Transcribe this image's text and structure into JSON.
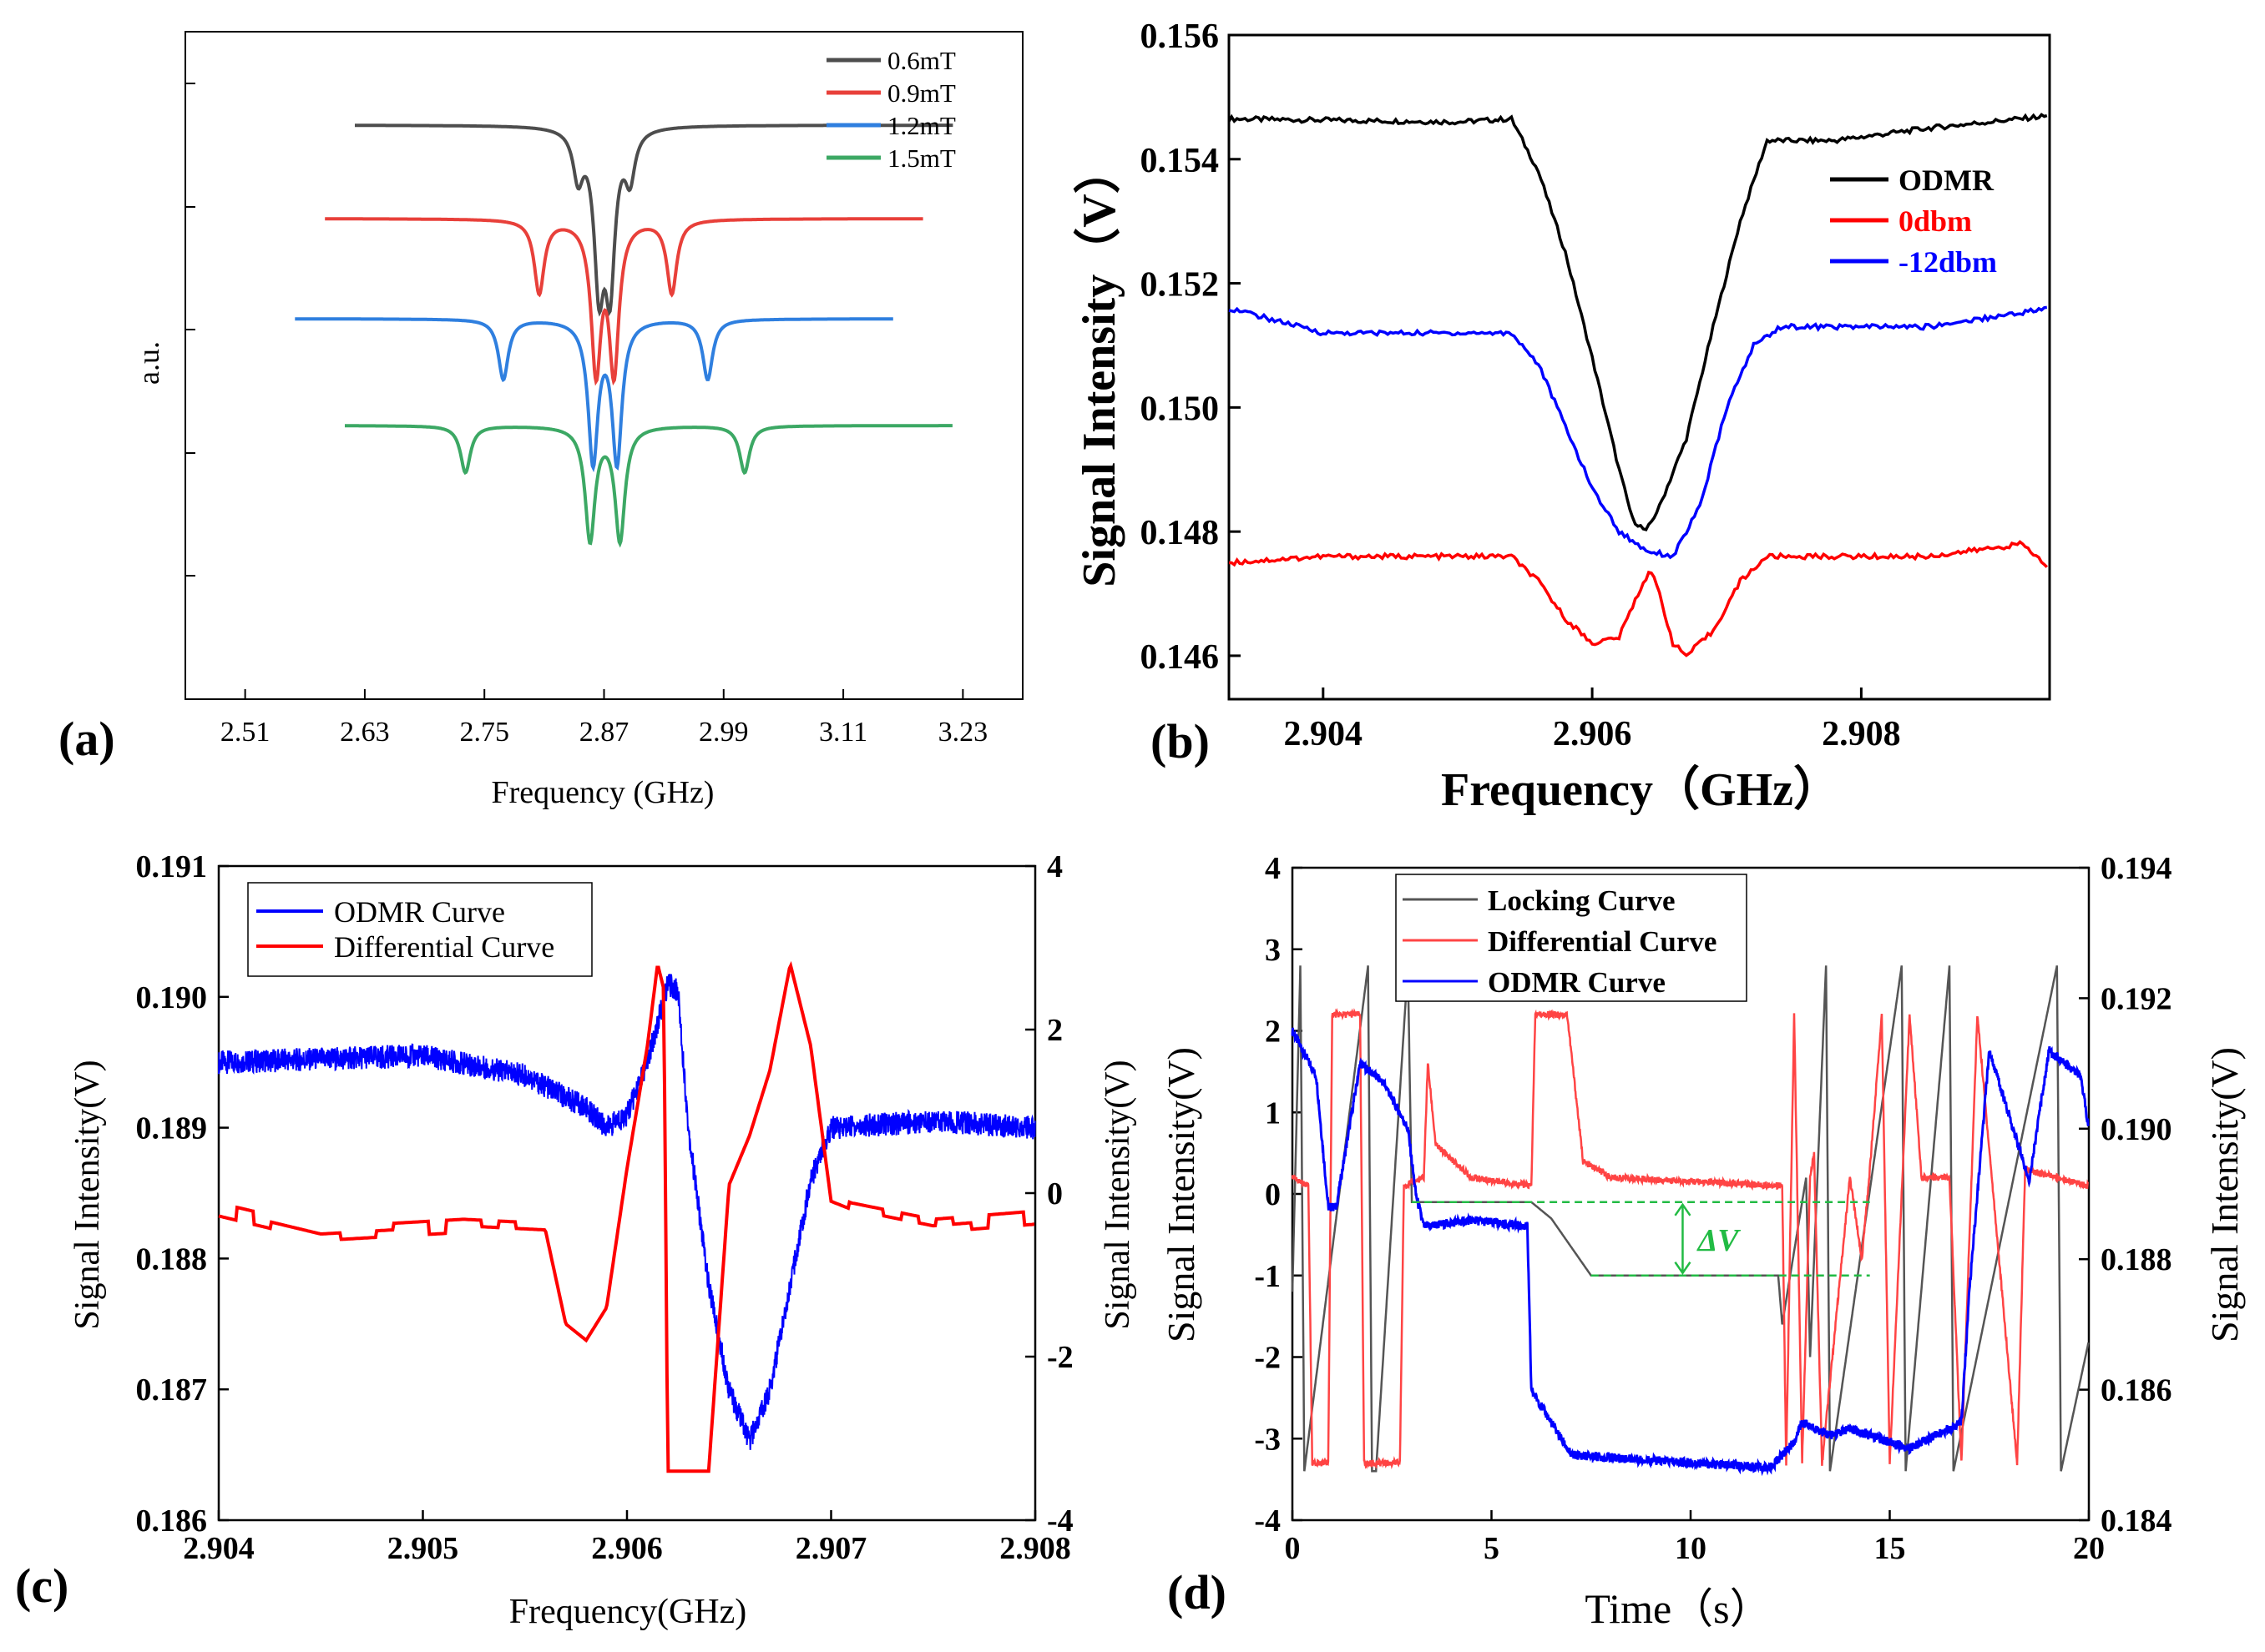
{
  "chart_data": [
    {
      "panel": "a",
      "panel_label": "(a)",
      "type": "line",
      "xlabel": "Frequency (GHz)",
      "ylabel": "a.u.",
      "xlim": [
        2.45,
        3.29
      ],
      "x_ticks": [
        "2.51",
        "2.63",
        "2.75",
        "2.87",
        "2.99",
        "3.11",
        "3.23"
      ],
      "legend_position": "top-right",
      "series": [
        {
          "name": "0.6mT",
          "color": "#4d4d4d",
          "x_range": [
            2.62,
            3.22
          ],
          "baseline": 0.86,
          "dips": [
            {
              "f": 2.844,
              "depth": 0.07,
              "w": 0.006
            },
            {
              "f": 2.865,
              "depth": 0.22,
              "w": 0.006
            },
            {
              "f": 2.876,
              "depth": 0.22,
              "w": 0.006
            },
            {
              "f": 2.896,
              "depth": 0.07,
              "w": 0.006
            }
          ]
        },
        {
          "name": "0.9mT",
          "color": "#e8403a",
          "x_range": [
            2.59,
            3.19
          ],
          "baseline": 0.72,
          "dips": [
            {
              "f": 2.805,
              "depth": 0.11,
              "w": 0.006
            },
            {
              "f": 2.862,
              "depth": 0.22,
              "w": 0.006
            },
            {
              "f": 2.88,
              "depth": 0.22,
              "w": 0.006
            },
            {
              "f": 2.938,
              "depth": 0.11,
              "w": 0.006
            }
          ]
        },
        {
          "name": "1.2mT",
          "color": "#2f7fdf",
          "x_range": [
            2.56,
            3.16
          ],
          "baseline": 0.57,
          "dips": [
            {
              "f": 2.769,
              "depth": 0.09,
              "w": 0.006
            },
            {
              "f": 2.859,
              "depth": 0.21,
              "w": 0.006
            },
            {
              "f": 2.883,
              "depth": 0.21,
              "w": 0.006
            },
            {
              "f": 2.974,
              "depth": 0.09,
              "w": 0.006
            }
          ]
        },
        {
          "name": "1.5mT",
          "color": "#3ca864",
          "x_range": [
            2.61,
            3.22
          ],
          "baseline": 0.41,
          "dips": [
            {
              "f": 2.731,
              "depth": 0.07,
              "w": 0.006
            },
            {
              "f": 2.856,
              "depth": 0.17,
              "w": 0.006
            },
            {
              "f": 2.886,
              "depth": 0.17,
              "w": 0.006
            },
            {
              "f": 3.011,
              "depth": 0.07,
              "w": 0.006
            }
          ]
        }
      ]
    },
    {
      "panel": "b",
      "panel_label": "(b)",
      "type": "line",
      "xlabel": "Frequency（GHz）",
      "ylabel": "Signal Intensity（V）",
      "xlim": [
        2.9033,
        2.9094
      ],
      "ylim": [
        0.1453,
        0.156
      ],
      "x_ticks": [
        "2.904",
        "2.906",
        "2.908"
      ],
      "y_ticks": [
        "0.146",
        "0.148",
        "0.150",
        "0.152",
        "0.154",
        "0.156"
      ],
      "legend_position": "top-right",
      "series": [
        {
          "name": "ODMR",
          "color": "#000000",
          "points": [
            [
              2.9033,
              0.15465
            ],
            [
              2.905,
              0.1546
            ],
            [
              2.9054,
              0.15465
            ],
            [
              2.9056,
              0.1538
            ],
            [
              2.9058,
              0.1525
            ],
            [
              2.906,
              0.1508
            ],
            [
              2.9062,
              0.149
            ],
            [
              2.9063,
              0.1482
            ],
            [
              2.9064,
              0.148
            ],
            [
              2.9065,
              0.1484
            ],
            [
              2.9067,
              0.1495
            ],
            [
              2.9069,
              0.1513
            ],
            [
              2.9071,
              0.153
            ],
            [
              2.9073,
              0.1543
            ],
            [
              2.9078,
              0.1543
            ],
            [
              2.9085,
              0.1545
            ],
            [
              2.9094,
              0.1547
            ]
          ]
        },
        {
          "name": "0dbm",
          "color": "#ff0000",
          "points": [
            [
              2.9033,
              0.1475
            ],
            [
              2.904,
              0.1476
            ],
            [
              2.9054,
              0.1476
            ],
            [
              2.9056,
              0.1472
            ],
            [
              2.9058,
              0.1466
            ],
            [
              2.906,
              0.1462
            ],
            [
              2.9062,
              0.1463
            ],
            [
              2.9063,
              0.1468
            ],
            [
              2.90643,
              0.1474
            ],
            [
              2.9065,
              0.147
            ],
            [
              2.9066,
              0.1462
            ],
            [
              2.9067,
              0.146
            ],
            [
              2.9069,
              0.1464
            ],
            [
              2.9071,
              0.1472
            ],
            [
              2.9073,
              0.1476
            ],
            [
              2.9085,
              0.1476
            ],
            [
              2.9092,
              0.1478
            ],
            [
              2.9094,
              0.1474
            ]
          ]
        },
        {
          "name": "-12dbm",
          "color": "#0000ff",
          "points": [
            [
              2.9033,
              0.1516
            ],
            [
              2.904,
              0.1512
            ],
            [
              2.9054,
              0.1512
            ],
            [
              2.9056,
              0.1507
            ],
            [
              2.9058,
              0.1497
            ],
            [
              2.906,
              0.1487
            ],
            [
              2.9062,
              0.148
            ],
            [
              2.9064,
              0.1477
            ],
            [
              2.9066,
              0.1476
            ],
            [
              2.9068,
              0.1484
            ],
            [
              2.907,
              0.15
            ],
            [
              2.9072,
              0.151
            ],
            [
              2.9074,
              0.1513
            ],
            [
              2.9085,
              0.1513
            ],
            [
              2.9094,
              0.1516
            ]
          ]
        }
      ]
    },
    {
      "panel": "c",
      "panel_label": "(c)",
      "type": "line",
      "xlabel": "Frequency(GHz)",
      "ylabel": "Signal Intensity(V)",
      "y2label": "Signal Intensity(V)",
      "xlim": [
        2.904,
        2.908
      ],
      "ylim": [
        0.186,
        0.191
      ],
      "y2lim": [
        -4,
        4
      ],
      "x_ticks": [
        "2.904",
        "2.905",
        "2.906",
        "2.907",
        "2.908"
      ],
      "y_ticks": [
        "0.186",
        "0.187",
        "0.188",
        "0.189",
        "0.190",
        "0.191"
      ],
      "y2_ticks": [
        "-4",
        "-2",
        "0",
        "2",
        "4"
      ],
      "legend_position": "top-left",
      "series": [
        {
          "name": "ODMR Curve",
          "color": "#0000ff",
          "axis": "left",
          "points": [
            [
              2.904,
              0.1895
            ],
            [
              2.905,
              0.18955
            ],
            [
              2.9055,
              0.1894
            ],
            [
              2.9058,
              0.18915
            ],
            [
              2.9059,
              0.189
            ],
            [
              2.906,
              0.1891
            ],
            [
              2.9061,
              0.1895
            ],
            [
              2.90615,
              0.1898
            ],
            [
              2.9062,
              0.1901
            ],
            [
              2.90625,
              0.19005
            ],
            [
              2.9063,
              0.189
            ],
            [
              2.9064,
              0.1878
            ],
            [
              2.9065,
              0.187
            ],
            [
              2.9066,
              0.1866
            ],
            [
              2.9067,
              0.187
            ],
            [
              2.9068,
              0.1878
            ],
            [
              2.9069,
              0.1886
            ],
            [
              2.907,
              0.189
            ],
            [
              2.9075,
              0.18905
            ],
            [
              2.908,
              0.189
            ]
          ]
        },
        {
          "name": "Differential Curve",
          "color": "#ff0000",
          "axis": "right",
          "points": [
            [
              2.904,
              -0.2
            ],
            [
              2.9045,
              -0.5
            ],
            [
              2.9052,
              -0.4
            ],
            [
              2.9056,
              -0.45
            ],
            [
              2.9057,
              -1.6
            ],
            [
              2.9058,
              -1.8
            ],
            [
              2.9059,
              -1.4
            ],
            [
              2.906,
              0.3
            ],
            [
              2.9061,
              1.8
            ],
            [
              2.90615,
              2.8
            ],
            [
              2.90618,
              2.5
            ],
            [
              2.9062,
              -3.4
            ],
            [
              2.9064,
              -3.4
            ],
            [
              2.9065,
              0.1
            ],
            [
              2.9066,
              0.7
            ],
            [
              2.9067,
              1.5
            ],
            [
              2.9068,
              2.8
            ],
            [
              2.9069,
              1.8
            ],
            [
              2.907,
              -0.1
            ],
            [
              2.9071,
              -0.2
            ],
            [
              2.9075,
              -0.4
            ],
            [
              2.908,
              -0.3
            ]
          ]
        }
      ]
    },
    {
      "panel": "d",
      "panel_label": "(d)",
      "type": "line",
      "xlabel": "Time（s）",
      "ylabel": "Signal Intensity(V)",
      "y2label": "Signal Intensity(V)",
      "xlim": [
        0,
        20
      ],
      "ylim": [
        -4,
        4
      ],
      "y2lim": [
        0.184,
        0.194
      ],
      "x_ticks": [
        "0",
        "5",
        "10",
        "15",
        "20"
      ],
      "y_ticks": [
        "-4",
        "-3",
        "-2",
        "-1",
        "0",
        "1",
        "2",
        "3",
        "4"
      ],
      "y2_ticks": [
        "0.184",
        "0.186",
        "0.188",
        "0.190",
        "0.192",
        "0.194"
      ],
      "legend_position": "top-center",
      "annotation": {
        "text": "ΔV",
        "x": 9.8,
        "y_top": -0.1,
        "y_bottom": -1.0,
        "color": "#22bb44"
      },
      "series": [
        {
          "name": "Locking Curve",
          "color": "#555555",
          "axis": "left",
          "points": [
            [
              0,
              -1.2
            ],
            [
              0.2,
              2.8
            ],
            [
              0.3,
              -3.4
            ],
            [
              1.9,
              2.8
            ],
            [
              2.0,
              -3.4
            ],
            [
              2.1,
              -3.4
            ],
            [
              2.9,
              2.8
            ],
            [
              3.0,
              -0.1
            ],
            [
              6.0,
              -0.1
            ],
            [
              6.5,
              -0.3
            ],
            [
              7.5,
              -1.0
            ],
            [
              12.2,
              -1.0
            ],
            [
              12.3,
              -1.6
            ],
            [
              12.9,
              0.2
            ],
            [
              13.0,
              -2.0
            ],
            [
              13.4,
              2.8
            ],
            [
              13.5,
              -3.4
            ],
            [
              15.3,
              2.8
            ],
            [
              15.4,
              -3.4
            ],
            [
              16.5,
              2.8
            ],
            [
              16.6,
              -3.4
            ],
            [
              19.2,
              2.8
            ],
            [
              19.3,
              -3.4
            ],
            [
              20,
              -1.8
            ]
          ]
        },
        {
          "name": "Differential Curve",
          "color": "#ff4444",
          "axis": "left",
          "points": [
            [
              0,
              0.2
            ],
            [
              0.4,
              0.1
            ],
            [
              0.5,
              -3.3
            ],
            [
              0.9,
              -3.3
            ],
            [
              1.0,
              2.2
            ],
            [
              1.7,
              2.2
            ],
            [
              1.8,
              -3.3
            ],
            [
              2.7,
              -3.3
            ],
            [
              2.8,
              0.1
            ],
            [
              3.3,
              0.2
            ],
            [
              3.4,
              1.6
            ],
            [
              3.6,
              0.6
            ],
            [
              4.5,
              0.2
            ],
            [
              6.0,
              0.1
            ],
            [
              6.1,
              2.2
            ],
            [
              6.9,
              2.2
            ],
            [
              7.3,
              0.4
            ],
            [
              8.0,
              0.2
            ],
            [
              12.3,
              0.1
            ],
            [
              12.4,
              -3.3
            ],
            [
              12.6,
              2.2
            ],
            [
              12.8,
              -3.3
            ],
            [
              13.0,
              0.2
            ],
            [
              13.1,
              0.5
            ],
            [
              13.3,
              -3.3
            ],
            [
              14.0,
              0.2
            ],
            [
              14.3,
              -0.8
            ],
            [
              14.5,
              0.3
            ],
            [
              14.8,
              2.2
            ],
            [
              15.0,
              -3.3
            ],
            [
              15.5,
              2.2
            ],
            [
              15.8,
              0.2
            ],
            [
              16.5,
              0.2
            ],
            [
              16.8,
              -3.3
            ],
            [
              17.2,
              2.2
            ],
            [
              18.2,
              -3.3
            ],
            [
              18.4,
              0.3
            ],
            [
              20,
              0.1
            ]
          ]
        },
        {
          "name": "ODMR Curve",
          "color": "#0000ff",
          "axis": "right",
          "points": [
            [
              0,
              0.1915
            ],
            [
              0.6,
              0.1908
            ],
            [
              0.9,
              0.1888
            ],
            [
              1.1,
              0.1888
            ],
            [
              1.7,
              0.191
            ],
            [
              2.3,
              0.1907
            ],
            [
              2.9,
              0.19
            ],
            [
              3.1,
              0.189
            ],
            [
              3.3,
              0.1885
            ],
            [
              4.5,
              0.1886
            ],
            [
              5.9,
              0.1885
            ],
            [
              6.0,
              0.186
            ],
            [
              6.5,
              0.1855
            ],
            [
              7.0,
              0.185
            ],
            [
              12.0,
              0.1848
            ],
            [
              12.6,
              0.1852
            ],
            [
              12.8,
              0.1855
            ],
            [
              13.5,
              0.1853
            ],
            [
              14.0,
              0.1854
            ],
            [
              15.5,
              0.1851
            ],
            [
              16.8,
              0.1855
            ],
            [
              17.0,
              0.1875
            ],
            [
              17.5,
              0.1912
            ],
            [
              18.5,
              0.1892
            ],
            [
              19.0,
              0.1912
            ],
            [
              19.8,
              0.1908
            ],
            [
              20,
              0.19
            ]
          ]
        }
      ]
    }
  ]
}
